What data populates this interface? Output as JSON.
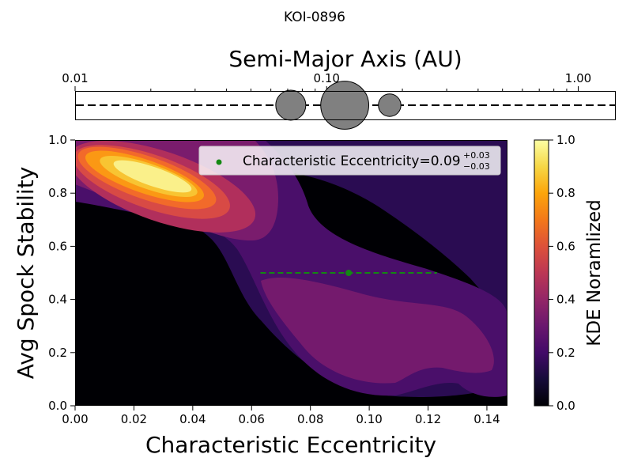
{
  "figure": {
    "title": "KOI-0896"
  },
  "chart_data": [
    {
      "type": "scatter",
      "title": "",
      "xlabel": "Semi-Major Axis (AU)",
      "ylabel": "",
      "xscale": "log",
      "xlim": [
        0.01,
        1.4
      ],
      "tick_labels": [
        "0.01",
        "0.10",
        "1.00"
      ],
      "tick_values": [
        0.01,
        0.1,
        1.0
      ],
      "axis_position": "top",
      "reference_line": "dashed",
      "planets": [
        {
          "a": 0.072,
          "relative_size": 1.0
        },
        {
          "a": 0.118,
          "relative_size": 1.6
        },
        {
          "a": 0.178,
          "relative_size": 0.75
        }
      ],
      "marker_color": "#808080"
    },
    {
      "type": "heatmap",
      "title": "",
      "xlabel": "Characteristic Eccentricity",
      "ylabel": "Avg Spock Stability",
      "xlim": [
        0.0,
        0.147
      ],
      "ylim": [
        0.0,
        1.0
      ],
      "x_tick_labels": [
        "0.00",
        "0.02",
        "0.04",
        "0.06",
        "0.08",
        "0.10",
        "0.12",
        "0.14"
      ],
      "x_tick_values": [
        0.0,
        0.02,
        0.04,
        0.06,
        0.08,
        0.1,
        0.12,
        0.14
      ],
      "y_tick_labels": [
        "0.0",
        "0.2",
        "0.4",
        "0.6",
        "0.8",
        "1.0"
      ],
      "y_tick_values": [
        0.0,
        0.2,
        0.4,
        0.6,
        0.8,
        1.0
      ],
      "colormap": "inferno-like",
      "kde_peak": {
        "x": 0.027,
        "y": 0.86
      },
      "colorbar": {
        "label": "KDE Noramlized",
        "range": [
          0.0,
          1.0
        ],
        "tick_labels": [
          "0.0",
          "0.2",
          "0.4",
          "0.6",
          "0.8",
          "1.0"
        ],
        "tick_values": [
          0.0,
          0.2,
          0.4,
          0.6,
          0.8,
          1.0
        ]
      },
      "estimate": {
        "x": 0.093,
        "y": 0.5,
        "xerr_low": 0.03,
        "xerr_high": 0.03,
        "color": "#138813",
        "legend_prefix": "Characteristic Eccentricity=0.09",
        "legend_sup": "+0.03",
        "legend_sub": "−0.03",
        "legend_position": "upper right"
      }
    }
  ]
}
